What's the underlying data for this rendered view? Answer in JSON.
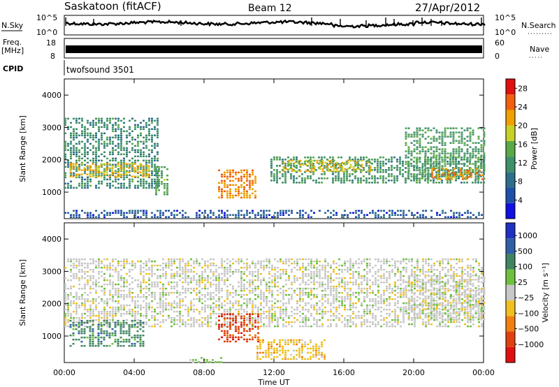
{
  "header": {
    "station": "Saskatoon (fitACF)",
    "beam": "Beam 12",
    "date": "27/Apr/2012"
  },
  "top_panel": {
    "left_label_sky": "N.Sky",
    "left_ticks": [
      "10^5",
      "10^0"
    ],
    "right_ticks": [
      "10^5",
      "10^0"
    ],
    "right_label": "N.Search",
    "freq_label_1": "Freq.",
    "freq_label_2": "[MHz]",
    "freq_ticks": [
      "18",
      "8"
    ],
    "nave_ticks": [
      "60",
      "0"
    ],
    "nave_label": "Nave",
    "cpid_label": "CPID",
    "cpid_value": "twofsound 3501"
  },
  "chart_data": [
    {
      "type": "heatmap",
      "title": "",
      "xlabel": "Time UT",
      "ylabel": "Slant Range [km]",
      "x_ticks": [
        "00:00",
        "04:00",
        "08:00",
        "12:00",
        "16:00",
        "20:00",
        "00:00"
      ],
      "xlim_hours": [
        0,
        24
      ],
      "ylim": [
        180,
        4500
      ],
      "y_ticks": [
        "1000",
        "2000",
        "3000",
        "4000"
      ],
      "colorbar": {
        "label": "Power [dB]",
        "ticks": [
          "4",
          "8",
          "12",
          "16",
          "20",
          "24",
          "28"
        ],
        "range": [
          0,
          30
        ],
        "colors": [
          "#1010e0",
          "#1f4fa8",
          "#2e6e8a",
          "#3f8f6a",
          "#5aa848",
          "#c8d028",
          "#f0a000",
          "#f06010",
          "#e01010"
        ]
      },
      "scatter_regions": [
        {
          "t0": 0.0,
          "t1": 5.4,
          "r0": 1100,
          "r1": 3300,
          "level": 11
        },
        {
          "t0": 0.3,
          "t1": 4.8,
          "r0": 1450,
          "r1": 1900,
          "level": 20
        },
        {
          "t0": 5.2,
          "t1": 6.0,
          "r0": 900,
          "r1": 1800,
          "level": 14
        },
        {
          "t0": 8.8,
          "t1": 11.0,
          "r0": 800,
          "r1": 1700,
          "level": 23
        },
        {
          "t0": 11.8,
          "t1": 24.0,
          "r0": 1300,
          "r1": 2100,
          "level": 12
        },
        {
          "t0": 12.5,
          "t1": 17.5,
          "r0": 1650,
          "r1": 2000,
          "level": 19
        },
        {
          "t0": 19.5,
          "t1": 24.0,
          "r0": 1400,
          "r1": 3000,
          "level": 13
        },
        {
          "t0": 21.0,
          "t1": 24.0,
          "r0": 1400,
          "r1": 1750,
          "level": 22
        },
        {
          "t0": 0.0,
          "t1": 24.0,
          "r0": 200,
          "r1": 450,
          "level": 6
        }
      ]
    },
    {
      "type": "heatmap",
      "title": "",
      "xlabel": "Time UT",
      "ylabel": "Slant Range [km]",
      "x_ticks": [
        "00:00",
        "04:00",
        "08:00",
        "12:00",
        "16:00",
        "20:00",
        "00:00"
      ],
      "xlim_hours": [
        0,
        24
      ],
      "ylim": [
        180,
        4500
      ],
      "y_ticks": [
        "1000",
        "2000",
        "3000",
        "4000"
      ],
      "colorbar": {
        "label": "Velocity [m s⁻¹]",
        "ticks": [
          "1000",
          "500",
          "100",
          "25",
          "−25",
          "−100",
          "−500",
          "−1000"
        ],
        "colors": [
          "#2030c0",
          "#305fa8",
          "#3f8560",
          "#70c040",
          "#c8c8c8",
          "#f0c020",
          "#f08010",
          "#e04010",
          "#e01010"
        ]
      },
      "scatter_regions": [
        {
          "t0": 0.0,
          "t1": 24.0,
          "r0": 1300,
          "r1": 3400,
          "level": 4
        },
        {
          "t0": 0.3,
          "t1": 4.5,
          "r0": 700,
          "r1": 1500,
          "level": 2
        },
        {
          "t0": 8.8,
          "t1": 11.2,
          "r0": 800,
          "r1": 1700,
          "level": 7
        },
        {
          "t0": 11.0,
          "t1": 15.0,
          "r0": 300,
          "r1": 900,
          "level": 5
        },
        {
          "t0": 7.0,
          "t1": 9.0,
          "r0": 200,
          "r1": 350,
          "level": 3
        },
        {
          "t0": 19.5,
          "t1": 24.0,
          "r0": 1500,
          "r1": 2900,
          "level": 4
        }
      ]
    }
  ],
  "colors": {
    "axis": "#000000",
    "trace": "#000000"
  }
}
